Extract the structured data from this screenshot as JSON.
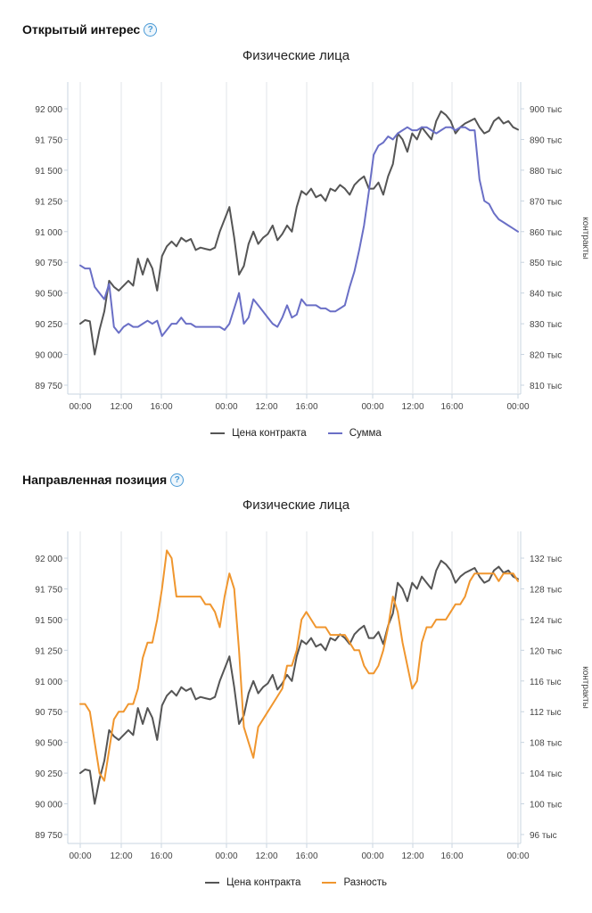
{
  "sections": [
    {
      "title": "Открытый интерес",
      "help_glyph": "?",
      "help_icon": "question-circle-icon",
      "chart_data": {
        "type": "line",
        "title": "Физические лица",
        "x_ticks": [
          "00:00",
          "12:00",
          "16:00",
          "00:00",
          "12:00",
          "16:00",
          "00:00",
          "12:00",
          "16:00",
          "00:00"
        ],
        "y_left_ticks": [
          "92 000",
          "91 750",
          "91 500",
          "91 250",
          "91 000",
          "90 750",
          "90 500",
          "90 250",
          "90 000",
          "89 750"
        ],
        "y_left_range": [
          89750,
          92000
        ],
        "y_right_ticks": [
          "900 тыс",
          "890 тыс",
          "880 тыс",
          "870 тыс",
          "860 тыс",
          "850 тыс",
          "840 тыс",
          "830 тыс",
          "820 тыс",
          "810 тыс"
        ],
        "y_right_range": [
          810000,
          900000
        ],
        "y_right_label": "контракты",
        "grid": "vertical",
        "legend_position": "bottom",
        "series": [
          {
            "name": "Цена контракта",
            "axis": "left",
            "color": "#555555",
            "values": [
              90250,
              90280,
              90270,
              90000,
              90200,
              90350,
              90600,
              90550,
              90520,
              90560,
              90600,
              90560,
              90780,
              90650,
              90780,
              90700,
              90520,
              90800,
              90880,
              90920,
              90880,
              90950,
              90920,
              90940,
              90850,
              90870,
              90860,
              90850,
              90870,
              91000,
              91100,
              91200,
              90950,
              90650,
              90720,
              90900,
              91000,
              90900,
              90950,
              90980,
              91050,
              90930,
              90980,
              91050,
              91000,
              91200,
              91330,
              91300,
              91350,
              91280,
              91300,
              91250,
              91350,
              91330,
              91380,
              91350,
              91300,
              91380,
              91420,
              91450,
              91350,
              91350,
              91400,
              91300,
              91450,
              91550,
              91800,
              91750,
              91650,
              91800,
              91750,
              91850,
              91800,
              91750,
              91900,
              91980,
              91950,
              91900,
              91800,
              91850,
              91880,
              91900,
              91920,
              91850,
              91800,
              91820,
              91900,
              91930,
              91880,
              91900,
              91850,
              91830
            ]
          },
          {
            "name": "Сумма",
            "axis": "right",
            "color": "#6a6fc6",
            "values": [
              849000,
              848000,
              848000,
              842000,
              840000,
              838000,
              843000,
              829000,
              827000,
              829000,
              830000,
              829000,
              829000,
              830000,
              831000,
              830000,
              831000,
              826000,
              828000,
              830000,
              830000,
              832000,
              830000,
              830000,
              829000,
              829000,
              829000,
              829000,
              829000,
              829000,
              828000,
              830000,
              835000,
              840000,
              830000,
              832000,
              838000,
              836000,
              834000,
              832000,
              830000,
              829000,
              832000,
              836000,
              832000,
              833000,
              838000,
              836000,
              836000,
              836000,
              835000,
              835000,
              834000,
              834000,
              835000,
              836000,
              842000,
              847000,
              854000,
              862000,
              873000,
              885000,
              888000,
              889000,
              891000,
              890000,
              892000,
              893000,
              894000,
              893000,
              893000,
              894000,
              894000,
              893000,
              892000,
              893000,
              894000,
              894000,
              893000,
              894000,
              894000,
              893000,
              893000,
              877000,
              870000,
              869000,
              866000,
              864000,
              863000,
              862000,
              861000,
              860000
            ]
          }
        ]
      }
    },
    {
      "title": "Направленная позиция",
      "help_glyph": "?",
      "help_icon": "question-circle-icon",
      "chart_data": {
        "type": "line",
        "title": "Физические лица",
        "x_ticks": [
          "00:00",
          "12:00",
          "16:00",
          "00:00",
          "12:00",
          "16:00",
          "00:00",
          "12:00",
          "16:00",
          "00:00"
        ],
        "y_left_ticks": [
          "92 000",
          "91 750",
          "91 500",
          "91 250",
          "91 000",
          "90 750",
          "90 500",
          "90 250",
          "90 000",
          "89 750"
        ],
        "y_left_range": [
          89750,
          92000
        ],
        "y_right_ticks": [
          "132 тыс",
          "128 тыс",
          "124 тыс",
          "120 тыс",
          "116 тыс",
          "112 тыс",
          "108 тыс",
          "104 тыс",
          "100 тыс",
          "96 тыс"
        ],
        "y_right_range": [
          96000,
          132000
        ],
        "y_right_label": "контракты",
        "grid": "vertical",
        "legend_position": "bottom",
        "series": [
          {
            "name": "Цена контракта",
            "axis": "left",
            "color": "#555555",
            "values": [
              90250,
              90280,
              90270,
              90000,
              90200,
              90350,
              90600,
              90550,
              90520,
              90560,
              90600,
              90560,
              90780,
              90650,
              90780,
              90700,
              90520,
              90800,
              90880,
              90920,
              90880,
              90950,
              90920,
              90940,
              90850,
              90870,
              90860,
              90850,
              90870,
              91000,
              91100,
              91200,
              90950,
              90650,
              90720,
              90900,
              91000,
              90900,
              90950,
              90980,
              91050,
              90930,
              90980,
              91050,
              91000,
              91200,
              91330,
              91300,
              91350,
              91280,
              91300,
              91250,
              91350,
              91330,
              91380,
              91350,
              91300,
              91380,
              91420,
              91450,
              91350,
              91350,
              91400,
              91300,
              91450,
              91550,
              91800,
              91750,
              91650,
              91800,
              91750,
              91850,
              91800,
              91750,
              91900,
              91980,
              91950,
              91900,
              91800,
              91850,
              91880,
              91900,
              91920,
              91850,
              91800,
              91820,
              91900,
              91930,
              91880,
              91900,
              91850,
              91830
            ]
          },
          {
            "name": "Разность",
            "axis": "right",
            "color": "#f0962e",
            "values": [
              113000,
              113000,
              112000,
              108000,
              104000,
              103000,
              107000,
              111000,
              112000,
              112000,
              113000,
              113000,
              115000,
              119000,
              121000,
              121000,
              124000,
              128000,
              133000,
              132000,
              127000,
              127000,
              127000,
              127000,
              127000,
              127000,
              126000,
              126000,
              125000,
              123000,
              127000,
              130000,
              128000,
              120000,
              110000,
              108000,
              106000,
              110000,
              111000,
              112000,
              113000,
              114000,
              115000,
              118000,
              118000,
              120000,
              124000,
              125000,
              124000,
              123000,
              123000,
              123000,
              122000,
              122000,
              122000,
              122000,
              121000,
              120000,
              120000,
              118000,
              117000,
              117000,
              118000,
              120000,
              123000,
              127000,
              125000,
              121000,
              118000,
              115000,
              116000,
              121000,
              123000,
              123000,
              124000,
              124000,
              124000,
              125000,
              126000,
              126000,
              127000,
              129000,
              130000,
              130000,
              130000,
              130000,
              130000,
              129000,
              130000,
              130000,
              130000,
              129000
            ]
          }
        ]
      }
    }
  ]
}
